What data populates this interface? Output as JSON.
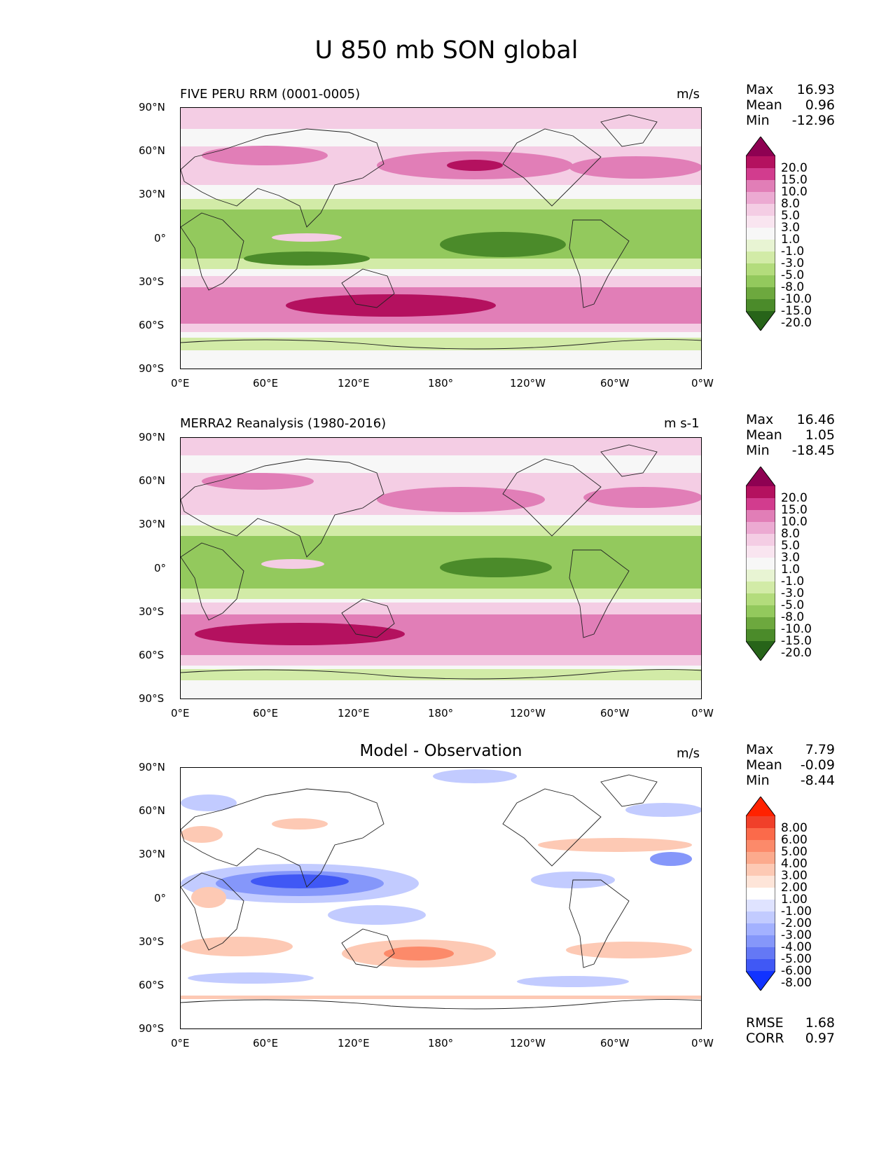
{
  "figure_title": "U 850 mb SON global",
  "chart_data": [
    {
      "type": "heatmap",
      "subtitle": "FIVE PERU RRM (0001-0005)",
      "units": "m/s",
      "stats": {
        "max_label": "Max",
        "max": "16.93",
        "mean_label": "Mean",
        "mean": "0.96",
        "min_label": "Min",
        "min": "-12.96"
      },
      "xticks": [
        "0°E",
        "60°E",
        "120°E",
        "180°",
        "120°W",
        "60°W",
        "0°W"
      ],
      "yticks": [
        "90°N",
        "60°N",
        "30°N",
        "0°",
        "30°S",
        "60°S",
        "90°S"
      ],
      "xlim": [
        0,
        360
      ],
      "ylim": [
        -90,
        90
      ],
      "levels": [
        "20.0",
        "15.0",
        "10.0",
        "8.0",
        "5.0",
        "3.0",
        "1.0",
        "-1.0",
        "-3.0",
        "-5.0",
        "-8.0",
        "-10.0",
        "-15.0",
        "-20.0"
      ],
      "colors": [
        "#8e0152",
        "#b4115f",
        "#d23c8e",
        "#e17eb7",
        "#ecaad2",
        "#f4cde4",
        "#f9e5f0",
        "#f7f7f7",
        "#e8f4d3",
        "#d2eba7",
        "#b3dc7c",
        "#93c95d",
        "#6da83e",
        "#4b8b2a",
        "#276419"
      ],
      "colormap": "PiYG"
    },
    {
      "type": "heatmap",
      "subtitle": "MERRA2 Reanalysis (1980-2016)",
      "units": "m s-1",
      "stats": {
        "max_label": "Max",
        "max": "16.46",
        "mean_label": "Mean",
        "mean": "1.05",
        "min_label": "Min",
        "min": "-18.45"
      },
      "xticks": [
        "0°E",
        "60°E",
        "120°E",
        "180°",
        "120°W",
        "60°W",
        "0°W"
      ],
      "yticks": [
        "90°N",
        "60°N",
        "30°N",
        "0°",
        "30°S",
        "60°S",
        "90°S"
      ],
      "xlim": [
        0,
        360
      ],
      "ylim": [
        -90,
        90
      ],
      "levels": [
        "20.0",
        "15.0",
        "10.0",
        "8.0",
        "5.0",
        "3.0",
        "1.0",
        "-1.0",
        "-3.0",
        "-5.0",
        "-8.0",
        "-10.0",
        "-15.0",
        "-20.0"
      ],
      "colors": [
        "#8e0152",
        "#b4115f",
        "#d23c8e",
        "#e17eb7",
        "#ecaad2",
        "#f4cde4",
        "#f9e5f0",
        "#f7f7f7",
        "#e8f4d3",
        "#d2eba7",
        "#b3dc7c",
        "#93c95d",
        "#6da83e",
        "#4b8b2a",
        "#276419"
      ],
      "colormap": "PiYG"
    },
    {
      "type": "heatmap",
      "subtitle": "Model - Observation",
      "units": "m/s",
      "stats": {
        "max_label": "Max",
        "max": "7.79",
        "mean_label": "Mean",
        "mean": "-0.09",
        "min_label": "Min",
        "min": "-8.44"
      },
      "extra_stats": {
        "rmse_label": "RMSE",
        "rmse": "1.68",
        "corr_label": "CORR",
        "corr": "0.97"
      },
      "xticks": [
        "0°E",
        "60°E",
        "120°E",
        "180°",
        "120°W",
        "60°W",
        "0°W"
      ],
      "yticks": [
        "90°N",
        "60°N",
        "30°N",
        "0°",
        "30°S",
        "60°S",
        "90°S"
      ],
      "xlim": [
        0,
        360
      ],
      "ylim": [
        -90,
        90
      ],
      "levels": [
        "8.00",
        "6.00",
        "5.00",
        "4.00",
        "3.00",
        "2.00",
        "1.00",
        "-1.00",
        "-2.00",
        "-3.00",
        "-4.00",
        "-5.00",
        "-6.00",
        "-8.00"
      ],
      "colors": [
        "#ff2200",
        "#f0402a",
        "#fb6a4a",
        "#fc8a6a",
        "#fcaa8d",
        "#fdc9b4",
        "#fee5d9",
        "#ffffff",
        "#dfe3ff",
        "#c2cbff",
        "#a3b1ff",
        "#8597fa",
        "#6478f5",
        "#4058f5",
        "#1133ff"
      ],
      "colormap": "bwr"
    }
  ],
  "fills": {
    "pos": {
      "weak": 3,
      "mod": 8,
      "strong": 15
    },
    "neg": {
      "weak": -3,
      "mod": -5,
      "strong": -10
    }
  }
}
